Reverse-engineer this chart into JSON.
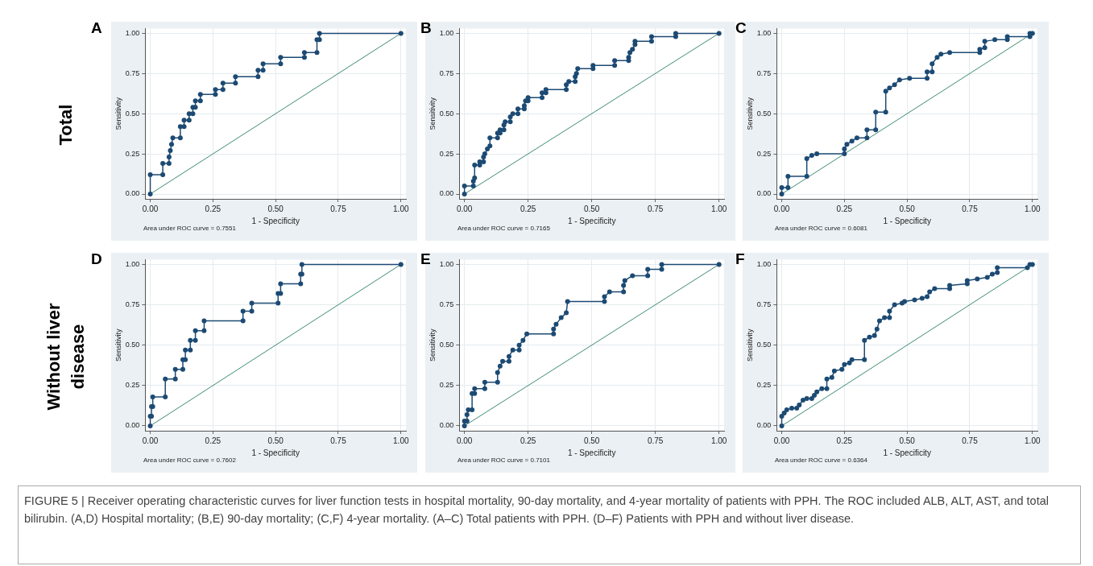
{
  "chart_data": [
    {
      "type": "line",
      "title": "A",
      "xlabel": "1 - Specificity",
      "ylabel": "Sensitivity",
      "xlim": [
        -0.02,
        1.02
      ],
      "ylim": [
        -0.03,
        1.03
      ],
      "xticks": [
        {
          "value": 0,
          "label": "0.00"
        },
        {
          "value": 0.25,
          "label": "0.25"
        },
        {
          "value": 0.5,
          "label": "0.50"
        },
        {
          "value": 0.75,
          "label": "0.75"
        },
        {
          "value": 1,
          "label": "1.00"
        }
      ],
      "yticks": [
        {
          "value": 0,
          "label": "0.00"
        },
        {
          "value": 0.25,
          "label": "0.25"
        },
        {
          "value": 0.5,
          "label": "0.50"
        },
        {
          "value": 0.75,
          "label": "0.75"
        },
        {
          "value": 1,
          "label": "1.00"
        }
      ],
      "grid": true,
      "marker": "circle",
      "series": [
        {
          "color": "#1c4a73",
          "x": [
            0,
            0,
            0.05,
            0.05,
            0.075,
            0.075,
            0.08,
            0.085,
            0.09,
            0.12,
            0.12,
            0.135,
            0.135,
            0.155,
            0.155,
            0.17,
            0.17,
            0.18,
            0.18,
            0.2,
            0.2,
            0.26,
            0.26,
            0.29,
            0.29,
            0.34,
            0.34,
            0.43,
            0.43,
            0.45,
            0.45,
            0.52,
            0.52,
            0.615,
            0.615,
            0.665,
            0.665,
            0.675,
            0.675,
            1
          ],
          "values": [
            0,
            0.12,
            0.12,
            0.19,
            0.19,
            0.23,
            0.27,
            0.31,
            0.35,
            0.35,
            0.42,
            0.42,
            0.46,
            0.46,
            0.5,
            0.5,
            0.54,
            0.54,
            0.58,
            0.58,
            0.62,
            0.62,
            0.65,
            0.65,
            0.69,
            0.69,
            0.73,
            0.73,
            0.77,
            0.77,
            0.81,
            0.81,
            0.85,
            0.85,
            0.88,
            0.88,
            0.96,
            0.96,
            1,
            1
          ]
        },
        {
          "color": "#3d8a70",
          "marker": "none",
          "x": [
            0,
            1
          ],
          "values": [
            0,
            1
          ]
        }
      ],
      "annotations": [
        "Area under ROC curve = 0.7551",
        "Total",
        "FIGURE 5 | Receiver operating characteristic curves for liver function tests in hospital mortality, 90-day mortality, and 4-year mortality of patients with PPH. The ROC included ALB, ALT, AST, and total bilirubin. (A,D) Hospital mortality; (B,E) 90-day mortality; (C,F) 4-year mortality. (A–C) Total patients with PPH. (D–F) Patients with PPH and without liver disease."
      ]
    },
    {
      "type": "line",
      "title": "B",
      "xlabel": "1 - Specificity",
      "ylabel": "Sensitivity",
      "xlim": [
        -0.02,
        1.02
      ],
      "ylim": [
        -0.03,
        1.03
      ],
      "xticks": [
        {
          "value": 0,
          "label": "0.00"
        },
        {
          "value": 0.25,
          "label": "0.25"
        },
        {
          "value": 0.5,
          "label": "0.50"
        },
        {
          "value": 0.75,
          "label": "0.75"
        },
        {
          "value": 1,
          "label": "1.00"
        }
      ],
      "yticks": [
        {
          "value": 0,
          "label": "0.00"
        },
        {
          "value": 0.25,
          "label": "0.25"
        },
        {
          "value": 0.5,
          "label": "0.50"
        },
        {
          "value": 0.75,
          "label": "0.75"
        },
        {
          "value": 1,
          "label": "1.00"
        }
      ],
      "grid": true,
      "marker": "circle",
      "series": [
        {
          "color": "#1c4a73",
          "x": [
            0,
            0,
            0.035,
            0.035,
            0.04,
            0.04,
            0.06,
            0.06,
            0.075,
            0.075,
            0.08,
            0.09,
            0.1,
            0.1,
            0.13,
            0.13,
            0.14,
            0.14,
            0.155,
            0.155,
            0.16,
            0.18,
            0.18,
            0.19,
            0.21,
            0.21,
            0.235,
            0.235,
            0.24,
            0.25,
            0.25,
            0.305,
            0.305,
            0.32,
            0.32,
            0.4,
            0.4,
            0.41,
            0.435,
            0.435,
            0.44,
            0.445,
            0.505,
            0.505,
            0.59,
            0.59,
            0.645,
            0.645,
            0.65,
            0.66,
            0.67,
            0.67,
            0.735,
            0.735,
            0.83,
            0.83,
            1
          ],
          "values": [
            0,
            0.05,
            0.05,
            0.08,
            0.1,
            0.18,
            0.18,
            0.2,
            0.2,
            0.23,
            0.25,
            0.28,
            0.3,
            0.35,
            0.35,
            0.38,
            0.38,
            0.4,
            0.4,
            0.43,
            0.45,
            0.45,
            0.48,
            0.5,
            0.5,
            0.53,
            0.53,
            0.55,
            0.58,
            0.58,
            0.6,
            0.6,
            0.63,
            0.63,
            0.65,
            0.65,
            0.68,
            0.7,
            0.7,
            0.73,
            0.75,
            0.78,
            0.78,
            0.8,
            0.8,
            0.83,
            0.83,
            0.85,
            0.88,
            0.9,
            0.93,
            0.95,
            0.95,
            0.98,
            0.98,
            1,
            1
          ]
        },
        {
          "color": "#3d8a70",
          "marker": "none",
          "x": [
            0,
            1
          ],
          "values": [
            0,
            1
          ]
        }
      ],
      "annotations": [
        "Area under ROC curve = 0.7165"
      ]
    },
    {
      "type": "line",
      "title": "C",
      "xlabel": "1 - Specificity",
      "ylabel": "Sensitivity",
      "xlim": [
        -0.02,
        1.02
      ],
      "ylim": [
        -0.03,
        1.03
      ],
      "xticks": [
        {
          "value": 0,
          "label": "0.00"
        },
        {
          "value": 0.25,
          "label": "0.25"
        },
        {
          "value": 0.5,
          "label": "0.50"
        },
        {
          "value": 0.75,
          "label": "0.75"
        },
        {
          "value": 1,
          "label": "1.00"
        }
      ],
      "yticks": [
        {
          "value": 0,
          "label": "0.00"
        },
        {
          "value": 0.25,
          "label": "0.25"
        },
        {
          "value": 0.5,
          "label": "0.50"
        },
        {
          "value": 0.75,
          "label": "0.75"
        },
        {
          "value": 1,
          "label": "1.00"
        }
      ],
      "grid": true,
      "marker": "circle",
      "series": [
        {
          "color": "#1c4a73",
          "x": [
            0,
            0,
            0.025,
            0.025,
            0.1,
            0.1,
            0.12,
            0.14,
            0.25,
            0.25,
            0.26,
            0.28,
            0.3,
            0.34,
            0.34,
            0.375,
            0.375,
            0.415,
            0.415,
            0.43,
            0.45,
            0.47,
            0.51,
            0.58,
            0.58,
            0.6,
            0.6,
            0.62,
            0.635,
            0.67,
            0.79,
            0.79,
            0.81,
            0.81,
            0.85,
            0.9,
            0.9,
            0.99,
            0.99,
            1
          ],
          "values": [
            0,
            0.04,
            0.04,
            0.11,
            0.11,
            0.22,
            0.24,
            0.25,
            0.25,
            0.28,
            0.31,
            0.33,
            0.35,
            0.35,
            0.4,
            0.4,
            0.51,
            0.51,
            0.64,
            0.66,
            0.68,
            0.71,
            0.72,
            0.72,
            0.76,
            0.76,
            0.81,
            0.85,
            0.87,
            0.88,
            0.88,
            0.9,
            0.91,
            0.95,
            0.96,
            0.96,
            0.98,
            0.98,
            1,
            1
          ]
        },
        {
          "color": "#3d8a70",
          "marker": "none",
          "x": [
            0,
            1
          ],
          "values": [
            0,
            1
          ]
        }
      ],
      "annotations": [
        "Area under ROC curve = 0.6081"
      ]
    },
    {
      "type": "line",
      "title": "D",
      "xlabel": "1 - Specificity",
      "ylabel": "Sensitivity",
      "xlim": [
        -0.02,
        1.02
      ],
      "ylim": [
        -0.03,
        1.03
      ],
      "xticks": [
        {
          "value": 0,
          "label": "0.00"
        },
        {
          "value": 0.25,
          "label": "0.25"
        },
        {
          "value": 0.5,
          "label": "0.50"
        },
        {
          "value": 0.75,
          "label": "0.75"
        },
        {
          "value": 1,
          "label": "1.00"
        }
      ],
      "yticks": [
        {
          "value": 0,
          "label": "0.00"
        },
        {
          "value": 0.25,
          "label": "0.25"
        },
        {
          "value": 0.5,
          "label": "0.50"
        },
        {
          "value": 0.75,
          "label": "0.75"
        },
        {
          "value": 1,
          "label": "1.00"
        }
      ],
      "grid": true,
      "marker": "circle",
      "series": [
        {
          "color": "#1c4a73",
          "x": [
            0,
            0,
            0.005,
            0.005,
            0.01,
            0.01,
            0.06,
            0.06,
            0.1,
            0.1,
            0.13,
            0.13,
            0.14,
            0.14,
            0.16,
            0.16,
            0.18,
            0.18,
            0.215,
            0.215,
            0.37,
            0.37,
            0.405,
            0.405,
            0.51,
            0.51,
            0.52,
            0.52,
            0.6,
            0.6,
            0.605,
            0.605,
            1
          ],
          "values": [
            0,
            0.06,
            0.06,
            0.12,
            0.12,
            0.18,
            0.18,
            0.29,
            0.29,
            0.35,
            0.35,
            0.41,
            0.41,
            0.47,
            0.47,
            0.53,
            0.53,
            0.59,
            0.59,
            0.65,
            0.65,
            0.71,
            0.71,
            0.76,
            0.76,
            0.82,
            0.82,
            0.88,
            0.88,
            0.94,
            0.94,
            1,
            1
          ]
        },
        {
          "color": "#3d8a70",
          "marker": "none",
          "x": [
            0,
            1
          ],
          "values": [
            0,
            1
          ]
        }
      ],
      "annotations": [
        "Area under ROC curve = 0.7602",
        "Without liver disease"
      ]
    },
    {
      "type": "line",
      "title": "E",
      "xlabel": "1 - Specificity",
      "ylabel": "Sensitivity",
      "xlim": [
        -0.02,
        1.02
      ],
      "ylim": [
        -0.03,
        1.03
      ],
      "xticks": [
        {
          "value": 0,
          "label": "0.00"
        },
        {
          "value": 0.25,
          "label": "0.25"
        },
        {
          "value": 0.5,
          "label": "0.50"
        },
        {
          "value": 0.75,
          "label": "0.75"
        },
        {
          "value": 1,
          "label": "1.00"
        }
      ],
      "yticks": [
        {
          "value": 0,
          "label": "0.00"
        },
        {
          "value": 0.25,
          "label": "0.25"
        },
        {
          "value": 0.5,
          "label": "0.50"
        },
        {
          "value": 0.75,
          "label": "0.75"
        },
        {
          "value": 1,
          "label": "1.00"
        }
      ],
      "grid": true,
      "marker": "circle",
      "series": [
        {
          "color": "#1c4a73",
          "x": [
            0,
            0,
            0.01,
            0.01,
            0.015,
            0.03,
            0.03,
            0.04,
            0.04,
            0.08,
            0.08,
            0.13,
            0.13,
            0.14,
            0.15,
            0.175,
            0.175,
            0.19,
            0.215,
            0.215,
            0.23,
            0.245,
            0.35,
            0.35,
            0.36,
            0.38,
            0.4,
            0.405,
            0.55,
            0.55,
            0.57,
            0.625,
            0.625,
            0.63,
            0.66,
            0.72,
            0.72,
            0.775,
            0.775,
            1
          ],
          "values": [
            0,
            0.03,
            0.03,
            0.07,
            0.1,
            0.1,
            0.2,
            0.2,
            0.23,
            0.23,
            0.27,
            0.27,
            0.33,
            0.37,
            0.4,
            0.4,
            0.43,
            0.47,
            0.47,
            0.5,
            0.53,
            0.57,
            0.57,
            0.6,
            0.63,
            0.67,
            0.7,
            0.77,
            0.77,
            0.8,
            0.83,
            0.83,
            0.87,
            0.9,
            0.93,
            0.93,
            0.97,
            0.97,
            1,
            1
          ]
        },
        {
          "color": "#3d8a70",
          "marker": "none",
          "x": [
            0,
            1
          ],
          "values": [
            0,
            1
          ]
        }
      ],
      "annotations": [
        "Area under ROC curve = 0.7101"
      ]
    },
    {
      "type": "line",
      "title": "F",
      "xlabel": "1 - Specificity",
      "ylabel": "Sensitivity",
      "xlim": [
        -0.02,
        1.02
      ],
      "ylim": [
        -0.03,
        1.03
      ],
      "xticks": [
        {
          "value": 0,
          "label": "0.00"
        },
        {
          "value": 0.25,
          "label": "0.25"
        },
        {
          "value": 0.5,
          "label": "0.50"
        },
        {
          "value": 0.75,
          "label": "0.75"
        },
        {
          "value": 1,
          "label": "1.00"
        }
      ],
      "yticks": [
        {
          "value": 0,
          "label": "0.00"
        },
        {
          "value": 0.25,
          "label": "0.25"
        },
        {
          "value": 0.5,
          "label": "0.50"
        },
        {
          "value": 0.75,
          "label": "0.75"
        },
        {
          "value": 1,
          "label": "1.00"
        }
      ],
      "grid": true,
      "marker": "circle",
      "series": [
        {
          "color": "#1c4a73",
          "x": [
            0,
            0,
            0.01,
            0.02,
            0.04,
            0.06,
            0.07,
            0.085,
            0.1,
            0.12,
            0.13,
            0.14,
            0.16,
            0.18,
            0.18,
            0.2,
            0.21,
            0.24,
            0.25,
            0.27,
            0.28,
            0.33,
            0.33,
            0.35,
            0.37,
            0.38,
            0.39,
            0.41,
            0.43,
            0.43,
            0.45,
            0.48,
            0.49,
            0.53,
            0.56,
            0.58,
            0.59,
            0.61,
            0.67,
            0.67,
            0.74,
            0.74,
            0.78,
            0.82,
            0.84,
            0.86,
            0.86,
            0.98,
            0.99,
            1
          ],
          "values": [
            0,
            0.06,
            0.08,
            0.1,
            0.11,
            0.11,
            0.13,
            0.16,
            0.17,
            0.17,
            0.19,
            0.21,
            0.23,
            0.23,
            0.29,
            0.3,
            0.34,
            0.35,
            0.38,
            0.39,
            0.41,
            0.41,
            0.53,
            0.55,
            0.56,
            0.6,
            0.65,
            0.67,
            0.67,
            0.71,
            0.75,
            0.76,
            0.77,
            0.78,
            0.79,
            0.8,
            0.83,
            0.85,
            0.85,
            0.87,
            0.88,
            0.9,
            0.91,
            0.92,
            0.94,
            0.95,
            0.98,
            0.98,
            1,
            1
          ]
        },
        {
          "color": "#3d8a70",
          "marker": "none",
          "x": [
            0,
            1
          ],
          "values": [
            0,
            1
          ]
        }
      ],
      "annotations": [
        "Area under ROC curve = 0.6364"
      ]
    }
  ]
}
